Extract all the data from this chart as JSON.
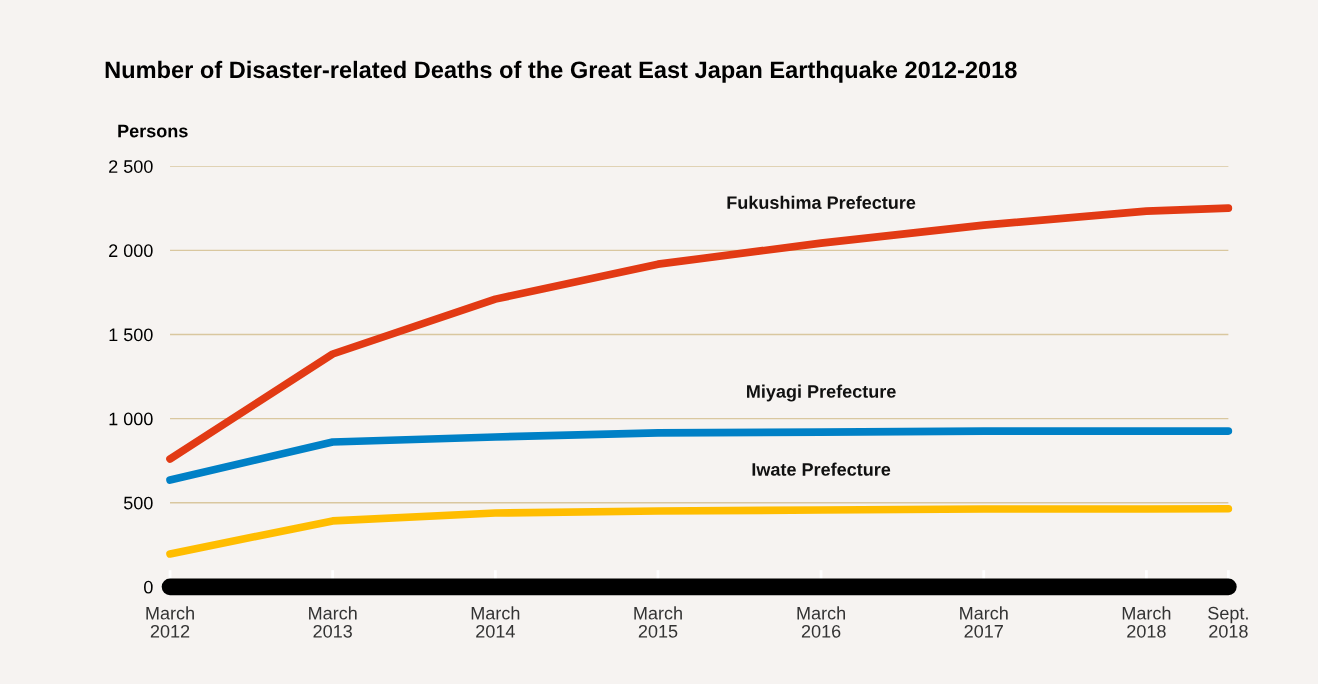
{
  "chart_data": {
    "type": "line",
    "title": "Number of Disaster-related Deaths of the Great East Japan Earthquake 2012-2018",
    "ylabel": "Persons",
    "x": [
      "2012-03",
      "2013-03",
      "2014-03",
      "2015-03",
      "2016-03",
      "2017-03",
      "2018-03",
      "2018-09"
    ],
    "series": [
      {
        "name": "Fukushima Prefecture",
        "color": "#e23a14",
        "values": [
          760,
          1384,
          1710,
          1918,
          2043,
          2150,
          2233,
          2251
        ]
      },
      {
        "name": "Miyagi Prefecture",
        "color": "#0080c6",
        "values": [
          635,
          861,
          891,
          915,
          920,
          926,
          926,
          926
        ]
      },
      {
        "name": "Iwate Prefecture",
        "color": "#ffbd00",
        "values": [
          196,
          392,
          439,
          451,
          457,
          463,
          463,
          464
        ]
      }
    ],
    "xlim": [
      "2012-03",
      "2018-09"
    ],
    "xticks": [
      {
        "value": "2012-03",
        "label": "March\n2012"
      },
      {
        "value": "2013-03",
        "label": "March\n2013"
      },
      {
        "value": "2014-03",
        "label": "March\n2014"
      },
      {
        "value": "2015-03",
        "label": "March\n2015"
      },
      {
        "value": "2016-03",
        "label": "March\n2016"
      },
      {
        "value": "2017-03",
        "label": "March\n2017"
      },
      {
        "value": "2018-03",
        "label": "March\n2018"
      },
      {
        "value": "2018-09",
        "label": "Sept.\n2018"
      }
    ],
    "ylim": [
      0,
      2500
    ],
    "yticks": [
      0,
      500,
      {
        "value": 1000,
        "label": "1 000"
      },
      {
        "value": 1500,
        "label": "1 500"
      },
      {
        "value": 2000,
        "label": "2 000"
      },
      {
        "value": 2500,
        "label": "2 500"
      }
    ],
    "grid": "y",
    "legend": false,
    "marker": "none",
    "line_style": "solid"
  }
}
